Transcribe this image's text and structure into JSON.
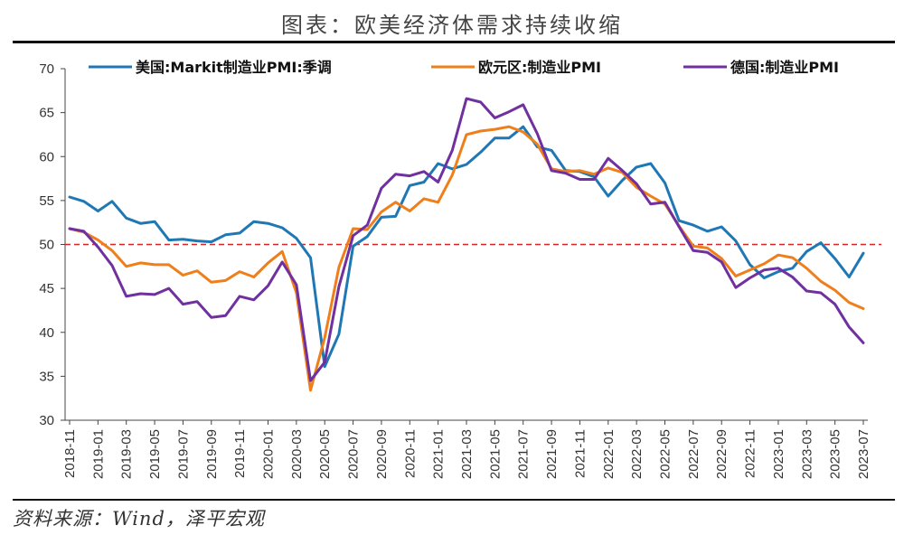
{
  "title": "图表：欧美经济体需求持续收缩",
  "source": "资料来源：Wind，泽平宏观",
  "chart_data": {
    "type": "line",
    "ylim": [
      30,
      70
    ],
    "yticks": [
      30,
      35,
      40,
      45,
      50,
      55,
      60,
      65,
      70
    ],
    "xtick_labels": [
      "2018-11",
      "2019-01",
      "2019-03",
      "2019-05",
      "2019-07",
      "2019-09",
      "2019-11",
      "2020-01",
      "2020-03",
      "2020-05",
      "2020-07",
      "2020-09",
      "2020-11",
      "2021-01",
      "2021-03",
      "2021-05",
      "2021-07",
      "2021-09",
      "2021-11",
      "2022-01",
      "2022-03",
      "2022-05",
      "2022-07",
      "2022-09",
      "2022-11",
      "2023-01",
      "2023-03",
      "2023-05",
      "2023-07"
    ],
    "reference_line": {
      "value": 50,
      "style": "dashed",
      "color": "#d62728"
    },
    "legend_position": "top",
    "grid": false,
    "series": [
      {
        "name": "美国:Markit制造业PMI:季调",
        "color": "#1f77b4",
        "values": [
          55.4,
          54.9,
          53.8,
          54.9,
          53.0,
          52.4,
          52.6,
          50.5,
          50.6,
          50.4,
          50.3,
          51.1,
          51.3,
          52.6,
          52.4,
          51.9,
          50.7,
          48.5,
          36.1,
          39.8,
          49.8,
          50.9,
          53.1,
          53.2,
          56.7,
          57.1,
          59.2,
          58.6,
          59.1,
          60.5,
          62.1,
          62.1,
          63.4,
          61.1,
          60.7,
          58.4,
          58.3,
          57.7,
          55.5,
          57.3,
          58.8,
          59.2,
          57.0,
          52.7,
          52.2,
          51.5,
          52.0,
          50.4,
          47.7,
          46.2,
          46.9,
          47.3,
          49.2,
          50.2,
          48.4,
          46.3,
          49.0
        ]
      },
      {
        "name": "欧元区:制造业PMI",
        "color": "#ef7f1a",
        "values": [
          51.8,
          51.4,
          50.5,
          49.3,
          47.5,
          47.9,
          47.7,
          47.7,
          46.5,
          47.0,
          45.7,
          45.9,
          46.9,
          46.3,
          47.9,
          49.2,
          44.5,
          33.4,
          39.4,
          47.4,
          51.8,
          51.7,
          53.7,
          54.8,
          53.8,
          55.2,
          54.8,
          57.9,
          62.5,
          62.9,
          63.1,
          63.4,
          62.8,
          61.4,
          58.6,
          58.3,
          58.4,
          58.0,
          58.7,
          58.2,
          56.5,
          55.5,
          54.6,
          52.1,
          49.8,
          49.6,
          48.4,
          46.4,
          47.1,
          47.8,
          48.8,
          48.5,
          47.3,
          45.8,
          44.8,
          43.4,
          42.7
        ]
      },
      {
        "name": "德国:制造业PMI",
        "color": "#7030a0",
        "values": [
          51.8,
          51.5,
          49.7,
          47.6,
          44.1,
          44.4,
          44.3,
          45.0,
          43.2,
          43.5,
          41.7,
          41.9,
          44.1,
          43.7,
          45.3,
          48.0,
          45.4,
          34.5,
          36.6,
          45.2,
          51.0,
          52.2,
          56.4,
          58.0,
          57.8,
          58.3,
          57.1,
          60.7,
          66.6,
          66.2,
          64.4,
          65.1,
          65.9,
          62.6,
          58.4,
          58.1,
          57.4,
          57.4,
          59.8,
          58.4,
          56.9,
          54.6,
          54.8,
          52.0,
          49.3,
          49.1,
          48.0,
          45.1,
          46.2,
          47.1,
          47.3,
          46.3,
          44.7,
          44.5,
          43.2,
          40.6,
          38.8
        ]
      }
    ]
  }
}
